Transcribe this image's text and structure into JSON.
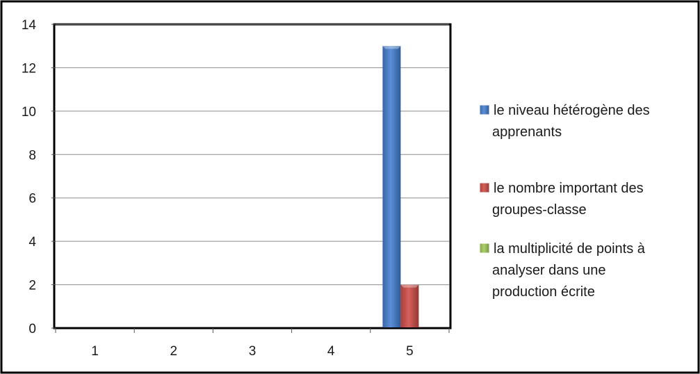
{
  "chart_data": {
    "type": "bar",
    "title": "",
    "xlabel": "",
    "ylabel": "",
    "categories": [
      "1",
      "2",
      "3",
      "4",
      "5"
    ],
    "ylim": [
      0,
      14
    ],
    "yticks": [
      0,
      2,
      4,
      6,
      8,
      10,
      12,
      14
    ],
    "grid": true,
    "legend_position": "right",
    "series": [
      {
        "name": "le niveau hétérogène des apprenants",
        "color": "#4a7cc4",
        "values": [
          0,
          0,
          0,
          0,
          13
        ]
      },
      {
        "name": "le nombre important des groupes-classe",
        "color": "#c0504d",
        "values": [
          0,
          0,
          0,
          0,
          2
        ]
      },
      {
        "name": "la multiplicité de points à analyser dans une production écrite",
        "color": "#9bbb59",
        "values": [
          0,
          0,
          0,
          0,
          0
        ]
      }
    ],
    "legend_lines": [
      [
        "le niveau hétérogène des",
        "apprenants"
      ],
      [
        "le nombre important des",
        "groupes-classe"
      ],
      [
        "la multiplicité de points à",
        "analyser dans une",
        "production écrite"
      ]
    ]
  }
}
